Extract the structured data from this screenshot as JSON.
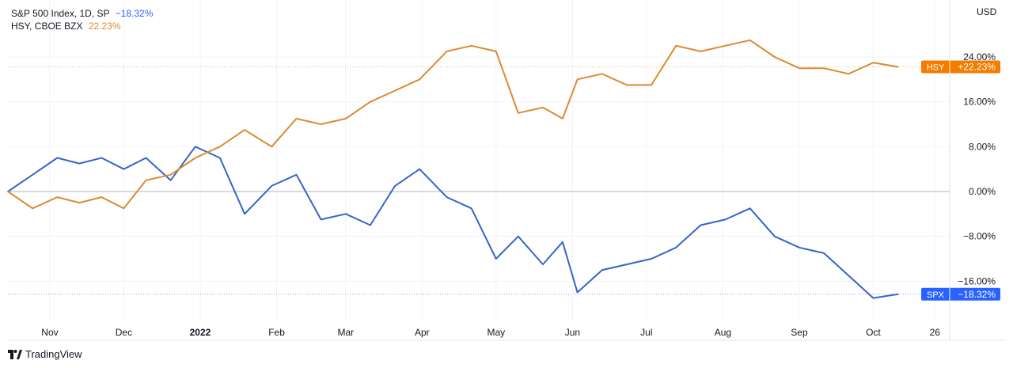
{
  "chart_data": {
    "type": "line",
    "currency": "USD",
    "ylabel": "",
    "xlabel": "",
    "ylim": [
      -21,
      32
    ],
    "grid": true,
    "y_ticks": [
      "24.00%",
      "16.00%",
      "8.00%",
      "0.00%",
      "−8.00%",
      "−16.00%"
    ],
    "y_tick_values": [
      24,
      16,
      8,
      0,
      -8,
      -16
    ],
    "x_ticks": [
      {
        "label": "Nov",
        "day": 10
      },
      {
        "label": "Dec",
        "day": 40
      },
      {
        "label": "2022",
        "day": 71
      },
      {
        "label": "Feb",
        "day": 102
      },
      {
        "label": "Mar",
        "day": 130
      },
      {
        "label": "Apr",
        "day": 161
      },
      {
        "label": "May",
        "day": 191
      },
      {
        "label": "Jun",
        "day": 222
      },
      {
        "label": "Jul",
        "day": 252
      },
      {
        "label": "Aug",
        "day": 283
      },
      {
        "label": "Sep",
        "day": 314
      },
      {
        "label": "Oct",
        "day": 344
      },
      {
        "label": "26",
        "day": 369
      }
    ],
    "x_domain": [
      -7,
      375
    ],
    "series": [
      {
        "name": "S&P 500 Index, 1D, SP",
        "ticker": "SPX",
        "change_label": "−18.32%",
        "tag_change": "−18.32%",
        "color": "#2962ff",
        "line_color": "#3565c7",
        "x": [
          -7,
          3,
          13,
          22,
          31,
          40,
          49,
          59,
          69,
          79,
          89,
          100,
          110,
          120,
          130,
          140,
          150,
          160,
          171,
          181,
          191,
          200,
          210,
          218,
          224,
          234,
          244,
          254,
          264,
          274,
          284,
          294,
          304,
          314,
          324,
          334,
          344,
          354
        ],
        "values": [
          0,
          3,
          6,
          5,
          6,
          4,
          6,
          2,
          8,
          6,
          -4,
          1,
          3,
          -5,
          -4,
          -6,
          1,
          4,
          -1,
          -3,
          -12,
          -8,
          -13,
          -9,
          -18,
          -14,
          -13,
          -12,
          -10,
          -6,
          -5,
          -3,
          -8,
          -10,
          -11,
          -15,
          -19,
          -18.32
        ]
      },
      {
        "name": "HSY, CBOE BZX",
        "ticker": "HSY",
        "change_label": "22.23%",
        "tag_change": "+22.23%",
        "color": "#f57c00",
        "line_color": "#db8a30",
        "x": [
          -7,
          3,
          13,
          22,
          31,
          40,
          49,
          59,
          69,
          79,
          89,
          100,
          110,
          120,
          130,
          140,
          150,
          160,
          171,
          181,
          191,
          200,
          210,
          218,
          224,
          234,
          244,
          254,
          264,
          274,
          284,
          294,
          304,
          314,
          324,
          334,
          344,
          354
        ],
        "values": [
          0,
          -3,
          -1,
          -2,
          -1,
          -3,
          2,
          3,
          6,
          8,
          11,
          8,
          13,
          12,
          13,
          16,
          18,
          20,
          25,
          26,
          25,
          14,
          15,
          13,
          20,
          21,
          19,
          19,
          26,
          25,
          26,
          27,
          24,
          22,
          22,
          21,
          23,
          22.23
        ]
      }
    ]
  },
  "brand": {
    "name": "TradingView"
  }
}
